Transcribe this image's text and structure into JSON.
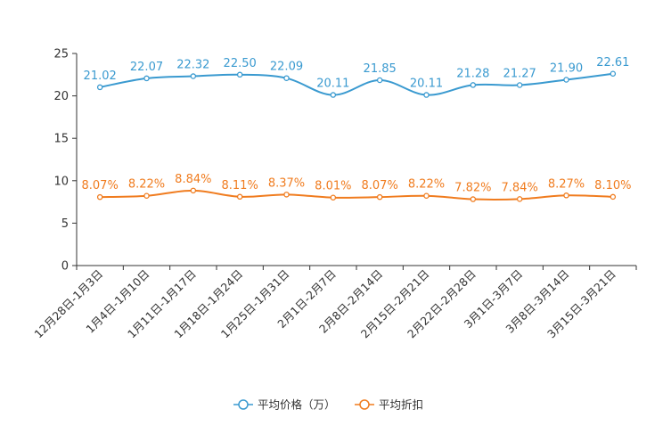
{
  "chart_data": {
    "type": "line",
    "title": "",
    "xlabel": "",
    "ylabel": "",
    "ylim": [
      0,
      25
    ],
    "yticks": [
      0,
      5,
      10,
      15,
      20,
      25
    ],
    "grid": false,
    "legend_position": "bottom-center",
    "categories": [
      "12月28日-1月3日",
      "1月4日-1月10日",
      "1月11日-1月17日",
      "1月18日-1月24日",
      "1月25日-1月31日",
      "2月1日-2月7日",
      "2月8日-2月14日",
      "2月15日-2月21日",
      "2月22日-2月28日",
      "3月1日-3月7日",
      "3月8日-3月14日",
      "3月15日-3月21日"
    ],
    "series": [
      {
        "name": "平均价格（万）",
        "color": "#3a9ad0",
        "values": [
          21.02,
          22.07,
          22.32,
          22.5,
          22.09,
          20.11,
          21.85,
          20.11,
          21.28,
          21.27,
          21.9,
          22.61
        ],
        "labels": [
          "21.02",
          "22.07",
          "22.32",
          "22.50",
          "22.09",
          "20.11",
          "21.85",
          "20.11",
          "21.28",
          "21.27",
          "21.90",
          "22.61"
        ]
      },
      {
        "name": "平均折扣",
        "color": "#f07c1f",
        "values": [
          8.07,
          8.22,
          8.84,
          8.11,
          8.37,
          8.01,
          8.07,
          8.22,
          7.82,
          7.84,
          8.27,
          8.1
        ],
        "labels": [
          "8.07%",
          "8.22%",
          "8.84%",
          "8.11%",
          "8.37%",
          "8.01%",
          "8.07%",
          "8.22%",
          "7.82%",
          "7.84%",
          "8.27%",
          "8.10%"
        ]
      }
    ]
  }
}
